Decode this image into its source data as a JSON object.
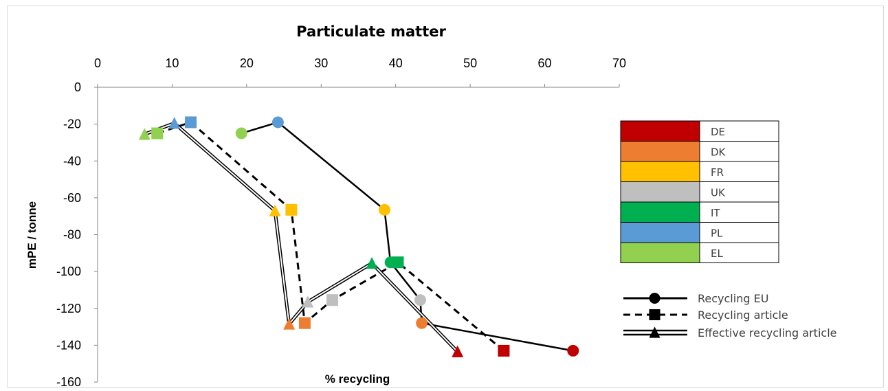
{
  "chart_data": {
    "type": "scatter",
    "title": "Particulate matter",
    "xlabel": "% recycling",
    "ylabel": "mPE / tonne",
    "xlim": [
      0,
      70
    ],
    "ylim": [
      -160,
      0
    ],
    "x_ticks": [
      0,
      10,
      20,
      30,
      40,
      50,
      60,
      70
    ],
    "y_ticks": [
      0,
      -20,
      -40,
      -60,
      -80,
      -100,
      -120,
      -140,
      -160
    ],
    "x_axis_position": "top",
    "grid": false,
    "country_legend": [
      {
        "label": "DE",
        "color": "#c00000"
      },
      {
        "label": "DK",
        "color": "#ed7d31"
      },
      {
        "label": "FR",
        "color": "#ffc000"
      },
      {
        "label": "UK",
        "color": "#bfbfbf"
      },
      {
        "label": "IT",
        "color": "#00b050"
      },
      {
        "label": "PL",
        "color": "#5b9bd5"
      },
      {
        "label": "EL",
        "color": "#92d050"
      }
    ],
    "series": [
      {
        "name": "Recycling EU",
        "marker": "circle",
        "line": "solid",
        "points": [
          {
            "country": "EL",
            "x": 19.3,
            "y": -25
          },
          {
            "country": "PL",
            "x": 24.2,
            "y": -19
          },
          {
            "country": "FR",
            "x": 38.5,
            "y": -66.5
          },
          {
            "country": "IT",
            "x": 39.3,
            "y": -95
          },
          {
            "country": "UK",
            "x": 43.3,
            "y": -115.5
          },
          {
            "country": "DK",
            "x": 43.5,
            "y": -128
          },
          {
            "country": "DE",
            "x": 63.8,
            "y": -143
          }
        ]
      },
      {
        "name": "Recycling article",
        "marker": "square",
        "line": "dashed",
        "points": [
          {
            "country": "EL",
            "x": 8.0,
            "y": -25
          },
          {
            "country": "PL",
            "x": 12.5,
            "y": -19
          },
          {
            "country": "FR",
            "x": 26.0,
            "y": -66.5
          },
          {
            "country": "DK",
            "x": 27.8,
            "y": -128
          },
          {
            "country": "UK",
            "x": 31.5,
            "y": -115.5
          },
          {
            "country": "IT",
            "x": 40.3,
            "y": -95
          },
          {
            "country": "DE",
            "x": 54.5,
            "y": -143
          }
        ]
      },
      {
        "name": "Effective recycling article",
        "marker": "triangle",
        "line": "double",
        "points": [
          {
            "country": "EL",
            "x": 6.3,
            "y": -25.5
          },
          {
            "country": "PL",
            "x": 10.3,
            "y": -19.5
          },
          {
            "country": "FR",
            "x": 23.8,
            "y": -67
          },
          {
            "country": "DK",
            "x": 25.7,
            "y": -128.5
          },
          {
            "country": "UK",
            "x": 28.2,
            "y": -116.5
          },
          {
            "country": "IT",
            "x": 36.8,
            "y": -95.5
          },
          {
            "country": "DE",
            "x": 48.3,
            "y": -143.5
          }
        ]
      }
    ]
  }
}
